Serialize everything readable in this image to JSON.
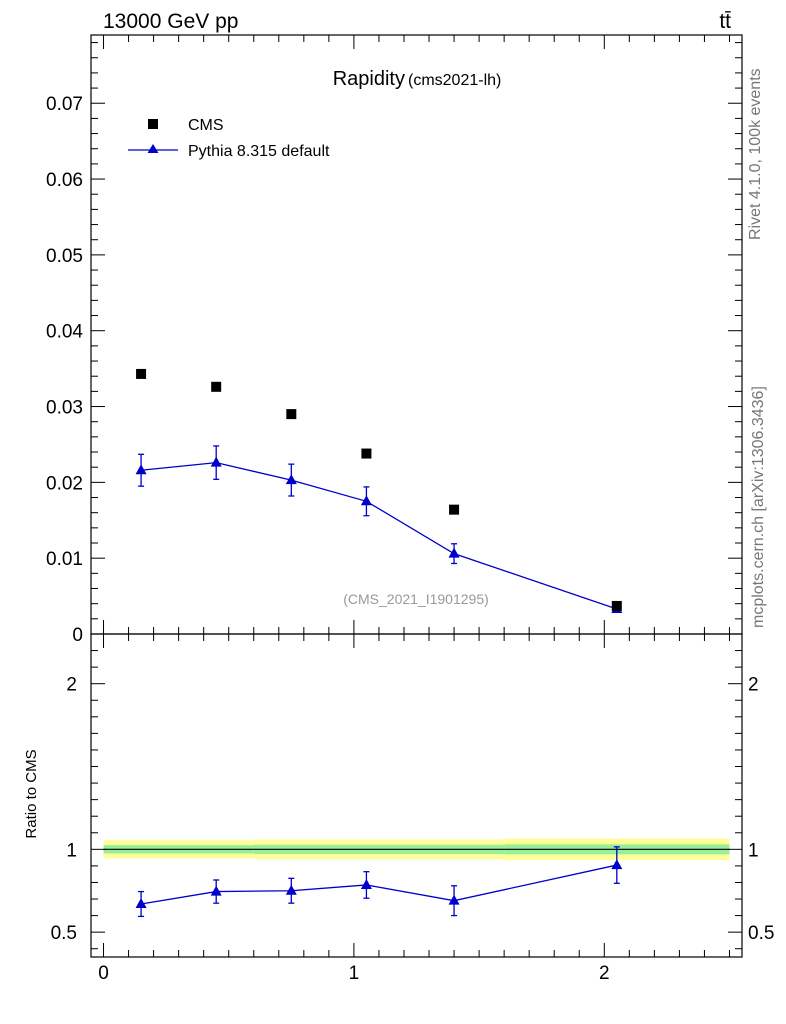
{
  "header": {
    "energy_label": "13000 GeV pp",
    "process_label": "tt̄"
  },
  "side_labels": {
    "rivet": "Rivet 4.1.0,  100k events",
    "source": "mcplots.cern.ch [arXiv:1306.3436]"
  },
  "colors": {
    "data": "#000000",
    "mc": "#0000cc",
    "band_inner": "#99ee99",
    "band_outer": "#ffff99"
  },
  "chart_data": [
    {
      "type": "scatter",
      "panel": "main",
      "title": "Rapidity",
      "title_suffix": "(cms2021-lh)",
      "watermark": "(CMS_2021_I1901295)",
      "xlabel": "",
      "ylabel": "",
      "xlim": [
        -0.05,
        2.55
      ],
      "ylim": [
        0,
        0.079
      ],
      "yticks": [
        0,
        0.01,
        0.02,
        0.03,
        0.04,
        0.05,
        0.06,
        0.07
      ],
      "ytick_labels": [
        "0",
        "0.01",
        "0.02",
        "0.03",
        "0.04",
        "0.05",
        "0.06",
        "0.07"
      ],
      "legend_position": "top-left",
      "series": [
        {
          "name": "CMS",
          "marker": "square",
          "x": [
            0.15,
            0.45,
            0.75,
            1.05,
            1.4,
            2.05
          ],
          "values": [
            0.0343,
            0.0326,
            0.029,
            0.0238,
            0.0164,
            0.0037
          ]
        },
        {
          "name": "Pythia 8.315 default",
          "marker": "triangle",
          "line": true,
          "x": [
            0.15,
            0.45,
            0.75,
            1.05,
            1.4,
            2.05
          ],
          "values": [
            0.0216,
            0.0226,
            0.0203,
            0.0175,
            0.0106,
            0.0033
          ],
          "errors": [
            0.0021,
            0.0022,
            0.0021,
            0.0019,
            0.0013,
            0.0004
          ]
        }
      ]
    },
    {
      "type": "scatter",
      "panel": "ratio",
      "ylabel": "Ratio to CMS",
      "xlim": [
        -0.05,
        2.55
      ],
      "ylim": [
        0.35,
        2.3
      ],
      "xticks": [
        0,
        1,
        2
      ],
      "xtick_labels": [
        "0",
        "1",
        "2"
      ],
      "yticks": [
        0.5,
        1,
        2
      ],
      "ytick_labels": [
        "0.5",
        "1",
        "2"
      ],
      "bands": [
        {
          "x0": 0.0,
          "x1": 0.6,
          "inner": 0.025,
          "outer": 0.055
        },
        {
          "x0": 0.6,
          "x1": 1.6,
          "inner": 0.028,
          "outer": 0.06
        },
        {
          "x0": 1.6,
          "x1": 2.5,
          "inner": 0.03,
          "outer": 0.065
        }
      ],
      "series": [
        {
          "name": "Pythia 8.315 default",
          "marker": "triangle",
          "line": true,
          "x": [
            0.15,
            0.45,
            0.75,
            1.05,
            1.4,
            2.05
          ],
          "values": [
            0.67,
            0.745,
            0.75,
            0.785,
            0.69,
            0.905
          ],
          "errors": [
            0.075,
            0.07,
            0.075,
            0.08,
            0.09,
            0.11
          ]
        }
      ]
    }
  ]
}
